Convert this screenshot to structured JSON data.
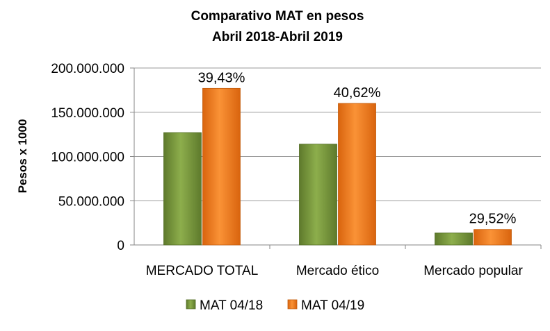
{
  "chart_data": {
    "type": "bar",
    "title": "Comparativo MAT en pesos",
    "subtitle": "Abril 2018-Abril 2019",
    "xlabel": "",
    "ylabel": "Pesos x 1000",
    "ylim": [
      0,
      200000000
    ],
    "yticks": [
      0,
      50000000,
      100000000,
      150000000,
      200000000
    ],
    "ytick_labels": [
      "0",
      "50.000.000",
      "100.000.000",
      "150.000.000",
      "200.000.000"
    ],
    "grid": true,
    "legend_position": "bottom",
    "categories": [
      "MERCADO TOTAL",
      "Mercado ético",
      "Mercado popular"
    ],
    "series": [
      {
        "name": "MAT 04/18",
        "color": "#77933C",
        "values": [
          127000000,
          114000000,
          13500000
        ]
      },
      {
        "name": "MAT 04/19",
        "color": "#F47B20",
        "values": [
          177000000,
          160000000,
          17500000
        ]
      }
    ],
    "annotations": [
      "39,43%",
      "40,62%",
      "29,52%"
    ]
  }
}
